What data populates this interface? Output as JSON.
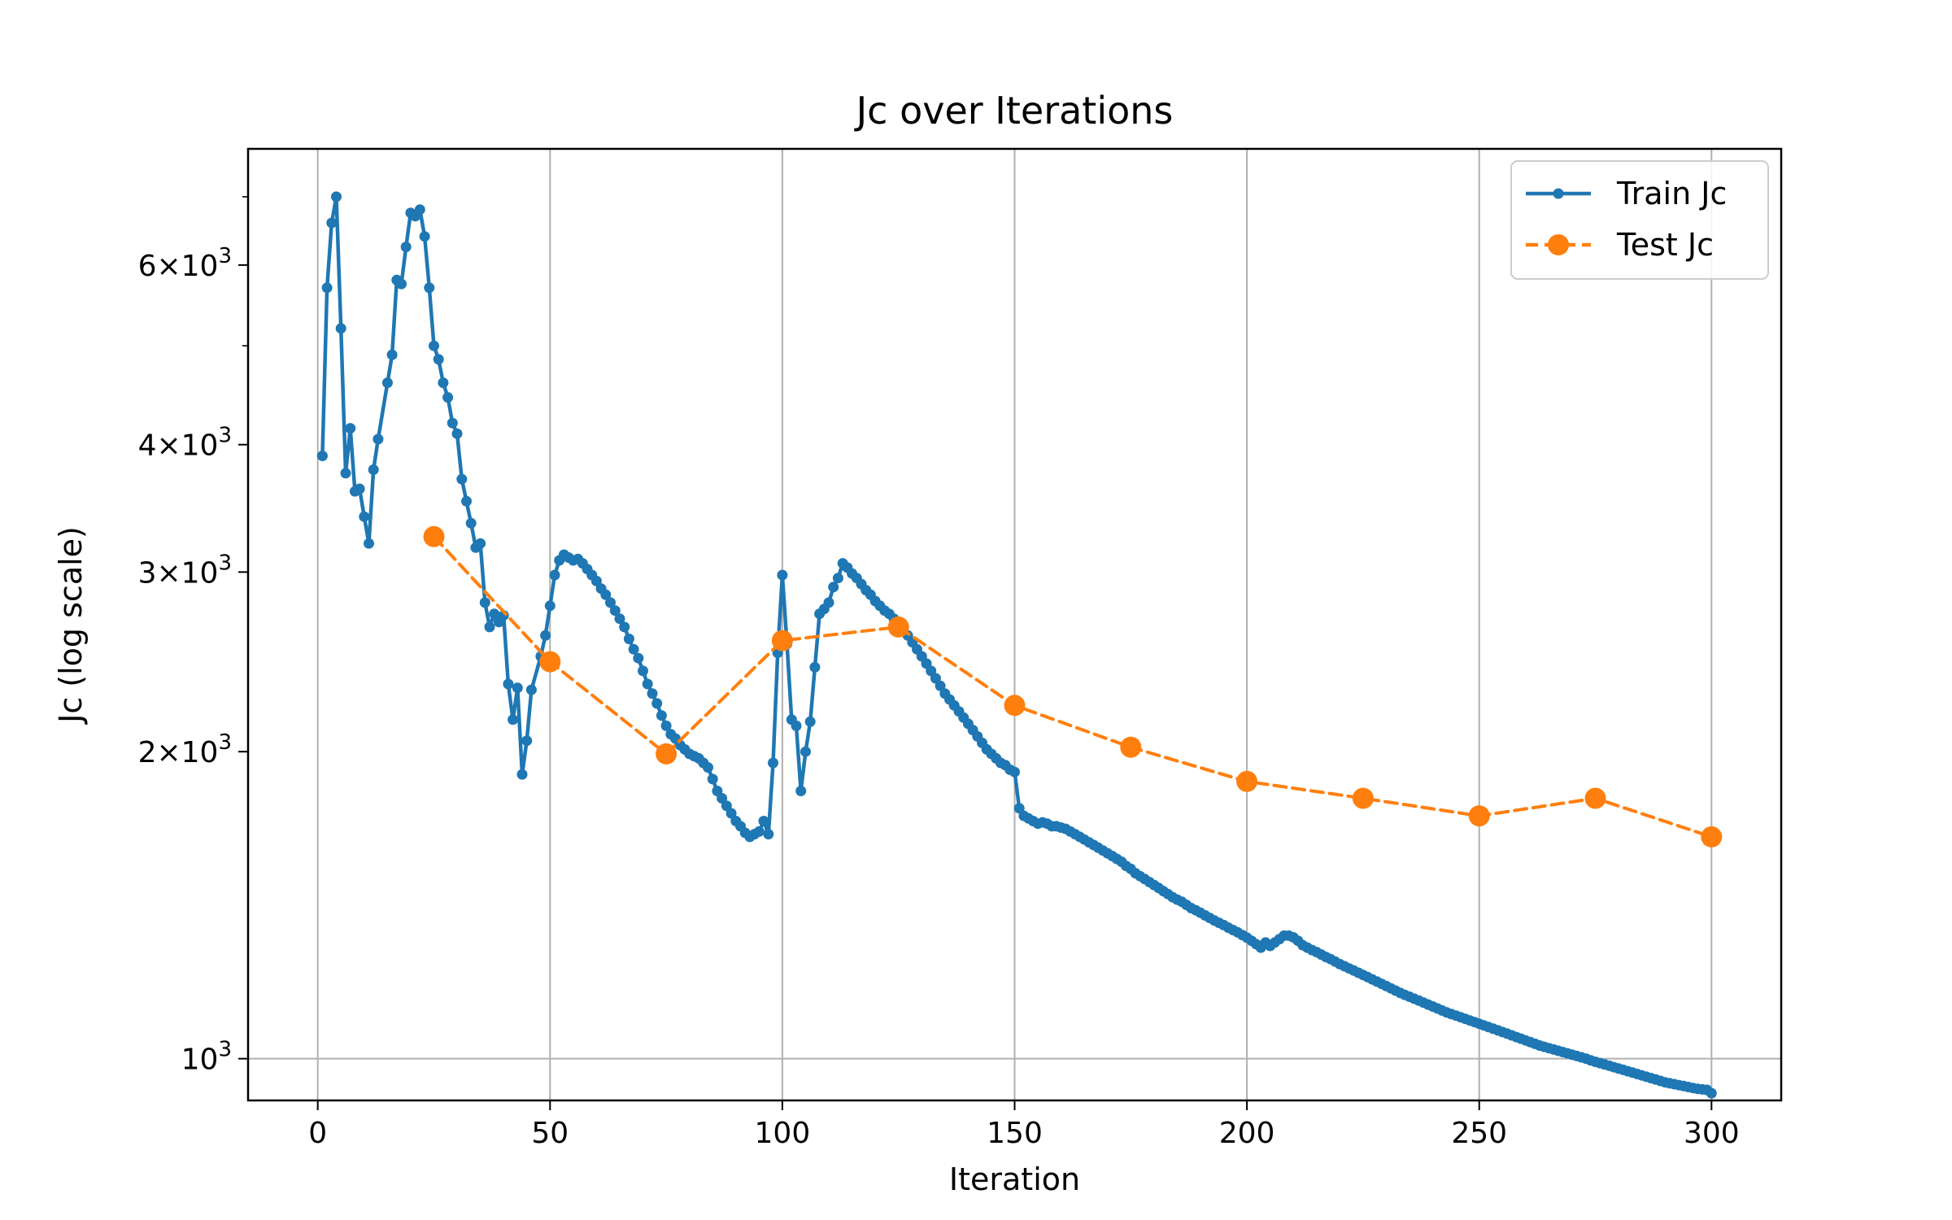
{
  "chart_data": {
    "type": "line",
    "title": "Jc over Iterations",
    "xlabel": "Iteration",
    "ylabel": "Jc (log scale)",
    "xlim": [
      -15,
      315
    ],
    "ylim": [
      910,
      7800
    ],
    "y_scale": "log",
    "grid": "vertical and at 10^3",
    "legend_position": "top-right",
    "x_ticks": [
      0,
      50,
      100,
      150,
      200,
      250,
      300
    ],
    "y_ticks": [
      {
        "value": 1000,
        "base": "10",
        "exp": "3",
        "mult": ""
      },
      {
        "value": 2000,
        "base": "10",
        "exp": "3",
        "mult": "2"
      },
      {
        "value": 3000,
        "base": "10",
        "exp": "3",
        "mult": "3"
      },
      {
        "value": 4000,
        "base": "10",
        "exp": "3",
        "mult": "4"
      },
      {
        "value": 6000,
        "base": "10",
        "exp": "3",
        "mult": "6"
      }
    ],
    "y_minor_ticks": [
      900,
      5000,
      7000
    ],
    "series": [
      {
        "name": "Train Jc",
        "color": "#1f77b4",
        "style": "solid",
        "marker": "small-dot",
        "points": [
          [
            1,
            3900
          ],
          [
            2,
            5700
          ],
          [
            3,
            6600
          ],
          [
            4,
            7000
          ],
          [
            5,
            5200
          ],
          [
            6,
            3750
          ],
          [
            7,
            4150
          ],
          [
            8,
            3600
          ],
          [
            9,
            3620
          ],
          [
            10,
            3400
          ],
          [
            11,
            3200
          ],
          [
            12,
            3780
          ],
          [
            13,
            4050
          ],
          [
            15,
            4600
          ],
          [
            16,
            4900
          ],
          [
            17,
            5800
          ],
          [
            18,
            5750
          ],
          [
            19,
            6250
          ],
          [
            20,
            6750
          ],
          [
            21,
            6700
          ],
          [
            22,
            6800
          ],
          [
            23,
            6400
          ],
          [
            24,
            5700
          ],
          [
            25,
            5000
          ],
          [
            26,
            4850
          ],
          [
            27,
            4600
          ],
          [
            28,
            4450
          ],
          [
            29,
            4200
          ],
          [
            30,
            4100
          ],
          [
            31,
            3700
          ],
          [
            32,
            3520
          ],
          [
            33,
            3350
          ],
          [
            34,
            3170
          ],
          [
            35,
            3200
          ],
          [
            36,
            2800
          ],
          [
            37,
            2650
          ],
          [
            38,
            2730
          ],
          [
            39,
            2680
          ],
          [
            40,
            2720
          ],
          [
            41,
            2330
          ],
          [
            42,
            2150
          ],
          [
            43,
            2310
          ],
          [
            44,
            1900
          ],
          [
            45,
            2050
          ],
          [
            46,
            2300
          ],
          [
            48,
            2480
          ],
          [
            49,
            2600
          ],
          [
            50,
            2780
          ],
          [
            51,
            2980
          ],
          [
            52,
            3080
          ],
          [
            53,
            3120
          ],
          [
            54,
            3100
          ],
          [
            55,
            3080
          ],
          [
            56,
            3090
          ],
          [
            57,
            3060
          ],
          [
            58,
            3020
          ],
          [
            59,
            2980
          ],
          [
            60,
            2940
          ],
          [
            61,
            2890
          ],
          [
            62,
            2850
          ],
          [
            63,
            2800
          ],
          [
            64,
            2750
          ],
          [
            65,
            2700
          ],
          [
            66,
            2650
          ],
          [
            67,
            2580
          ],
          [
            68,
            2520
          ],
          [
            69,
            2470
          ],
          [
            70,
            2400
          ],
          [
            71,
            2330
          ],
          [
            72,
            2280
          ],
          [
            73,
            2230
          ],
          [
            74,
            2170
          ],
          [
            75,
            2120
          ],
          [
            76,
            2080
          ],
          [
            77,
            2060
          ],
          [
            78,
            2030
          ],
          [
            79,
            2010
          ],
          [
            80,
            1990
          ],
          [
            81,
            1980
          ],
          [
            82,
            1970
          ],
          [
            83,
            1950
          ],
          [
            84,
            1930
          ],
          [
            85,
            1880
          ],
          [
            86,
            1830
          ],
          [
            87,
            1800
          ],
          [
            88,
            1770
          ],
          [
            89,
            1740
          ],
          [
            90,
            1710
          ],
          [
            91,
            1690
          ],
          [
            92,
            1665
          ],
          [
            93,
            1650
          ],
          [
            94,
            1660
          ],
          [
            95,
            1670
          ],
          [
            96,
            1710
          ],
          [
            97,
            1660
          ],
          [
            98,
            1950
          ],
          [
            99,
            2500
          ],
          [
            100,
            2980
          ],
          [
            101,
            2550
          ],
          [
            102,
            2150
          ],
          [
            103,
            2120
          ],
          [
            104,
            1830
          ],
          [
            105,
            2000
          ],
          [
            106,
            2140
          ],
          [
            107,
            2420
          ],
          [
            108,
            2730
          ],
          [
            109,
            2760
          ],
          [
            110,
            2800
          ],
          [
            111,
            2900
          ],
          [
            112,
            2960
          ],
          [
            113,
            3060
          ],
          [
            114,
            3030
          ],
          [
            115,
            2990
          ],
          [
            116,
            2960
          ],
          [
            117,
            2920
          ],
          [
            118,
            2880
          ],
          [
            119,
            2850
          ],
          [
            120,
            2810
          ],
          [
            121,
            2780
          ],
          [
            122,
            2750
          ],
          [
            123,
            2730
          ],
          [
            124,
            2700
          ],
          [
            125,
            2670
          ],
          [
            126,
            2640
          ],
          [
            127,
            2600
          ],
          [
            128,
            2560
          ],
          [
            129,
            2520
          ],
          [
            130,
            2480
          ],
          [
            131,
            2440
          ],
          [
            132,
            2400
          ],
          [
            133,
            2360
          ],
          [
            134,
            2320
          ],
          [
            135,
            2280
          ],
          [
            136,
            2250
          ],
          [
            137,
            2220
          ],
          [
            138,
            2190
          ],
          [
            139,
            2160
          ],
          [
            140,
            2130
          ],
          [
            141,
            2100
          ],
          [
            142,
            2070
          ],
          [
            143,
            2040
          ],
          [
            144,
            2010
          ],
          [
            145,
            1990
          ],
          [
            146,
            1970
          ],
          [
            147,
            1950
          ],
          [
            148,
            1940
          ],
          [
            149,
            1920
          ],
          [
            150,
            1910
          ],
          [
            151,
            1760
          ],
          [
            152,
            1730
          ],
          [
            153,
            1720
          ],
          [
            154,
            1710
          ],
          [
            155,
            1700
          ],
          [
            156,
            1705
          ],
          [
            157,
            1700
          ],
          [
            158,
            1690
          ],
          [
            159,
            1690
          ],
          [
            160,
            1685
          ],
          [
            161,
            1680
          ],
          [
            162,
            1670
          ],
          [
            163,
            1660
          ],
          [
            164,
            1650
          ],
          [
            165,
            1640
          ],
          [
            166,
            1630
          ],
          [
            167,
            1620
          ],
          [
            168,
            1610
          ],
          [
            169,
            1600
          ],
          [
            170,
            1590
          ],
          [
            171,
            1580
          ],
          [
            172,
            1570
          ],
          [
            173,
            1560
          ],
          [
            174,
            1545
          ],
          [
            175,
            1535
          ],
          [
            176,
            1520
          ],
          [
            177,
            1510
          ],
          [
            178,
            1500
          ],
          [
            179,
            1490
          ],
          [
            180,
            1480
          ],
          [
            181,
            1470
          ],
          [
            182,
            1460
          ],
          [
            183,
            1450
          ],
          [
            184,
            1440
          ],
          [
            185,
            1432
          ],
          [
            186,
            1425
          ],
          [
            187,
            1415
          ],
          [
            188,
            1405
          ],
          [
            189,
            1398
          ],
          [
            190,
            1390
          ],
          [
            191,
            1382
          ],
          [
            192,
            1374
          ],
          [
            193,
            1366
          ],
          [
            194,
            1359
          ],
          [
            195,
            1352
          ],
          [
            196,
            1344
          ],
          [
            197,
            1337
          ],
          [
            198,
            1330
          ],
          [
            199,
            1322
          ],
          [
            200,
            1314
          ],
          [
            201,
            1305
          ],
          [
            202,
            1295
          ],
          [
            203,
            1285
          ],
          [
            204,
            1300
          ],
          [
            205,
            1290
          ],
          [
            206,
            1300
          ],
          [
            207,
            1310
          ],
          [
            208,
            1320
          ],
          [
            209,
            1320
          ],
          [
            210,
            1315
          ],
          [
            211,
            1305
          ],
          [
            212,
            1292
          ],
          [
            213,
            1285
          ],
          [
            214,
            1278
          ],
          [
            215,
            1272
          ],
          [
            216,
            1265
          ],
          [
            217,
            1258
          ],
          [
            218,
            1252
          ],
          [
            219,
            1245
          ],
          [
            220,
            1238
          ],
          [
            221,
            1232
          ],
          [
            222,
            1226
          ],
          [
            223,
            1220
          ],
          [
            224,
            1214
          ],
          [
            225,
            1208
          ],
          [
            226,
            1202
          ],
          [
            227,
            1196
          ],
          [
            228,
            1190
          ],
          [
            229,
            1184
          ],
          [
            230,
            1178
          ],
          [
            231,
            1172
          ],
          [
            232,
            1166
          ],
          [
            233,
            1160
          ],
          [
            234,
            1155
          ],
          [
            235,
            1150
          ],
          [
            236,
            1145
          ],
          [
            237,
            1140
          ],
          [
            238,
            1135
          ],
          [
            239,
            1130
          ],
          [
            240,
            1125
          ],
          [
            241,
            1120
          ],
          [
            242,
            1115
          ],
          [
            243,
            1110
          ],
          [
            244,
            1106
          ],
          [
            245,
            1102
          ],
          [
            246,
            1098
          ],
          [
            247,
            1094
          ],
          [
            248,
            1090
          ],
          [
            249,
            1086
          ],
          [
            250,
            1082
          ],
          [
            251,
            1078
          ],
          [
            252,
            1074
          ],
          [
            253,
            1070
          ],
          [
            254,
            1066
          ],
          [
            255,
            1062
          ],
          [
            256,
            1058
          ],
          [
            257,
            1054
          ],
          [
            258,
            1050
          ],
          [
            259,
            1046
          ],
          [
            260,
            1042
          ],
          [
            261,
            1038
          ],
          [
            262,
            1034
          ],
          [
            263,
            1030
          ],
          [
            264,
            1027
          ],
          [
            265,
            1024
          ],
          [
            266,
            1021
          ],
          [
            267,
            1018
          ],
          [
            268,
            1015
          ],
          [
            269,
            1012
          ],
          [
            270,
            1009
          ],
          [
            271,
            1006
          ],
          [
            272,
            1003
          ],
          [
            273,
            1000
          ],
          [
            274,
            996
          ],
          [
            275,
            993
          ],
          [
            276,
            990
          ],
          [
            277,
            987
          ],
          [
            278,
            984
          ],
          [
            279,
            981
          ],
          [
            280,
            978
          ],
          [
            281,
            975
          ],
          [
            282,
            972
          ],
          [
            283,
            969
          ],
          [
            284,
            966
          ],
          [
            285,
            963
          ],
          [
            286,
            960
          ],
          [
            287,
            957
          ],
          [
            288,
            954
          ],
          [
            289,
            951
          ],
          [
            290,
            948
          ],
          [
            291,
            946
          ],
          [
            292,
            944
          ],
          [
            293,
            942
          ],
          [
            294,
            940
          ],
          [
            295,
            938
          ],
          [
            296,
            936
          ],
          [
            297,
            934
          ],
          [
            298,
            933
          ],
          [
            299,
            932
          ],
          [
            300,
            925
          ]
        ]
      },
      {
        "name": "Test Jc",
        "color": "#ff7f0e",
        "style": "dashed",
        "marker": "large-dot",
        "points": [
          [
            25,
            3250
          ],
          [
            50,
            2450
          ],
          [
            75,
            1990
          ],
          [
            100,
            2570
          ],
          [
            125,
            2650
          ],
          [
            150,
            2220
          ],
          [
            175,
            2020
          ],
          [
            200,
            1870
          ],
          [
            225,
            1800
          ],
          [
            250,
            1730
          ],
          [
            275,
            1800
          ],
          [
            300,
            1650
          ]
        ]
      }
    ]
  }
}
